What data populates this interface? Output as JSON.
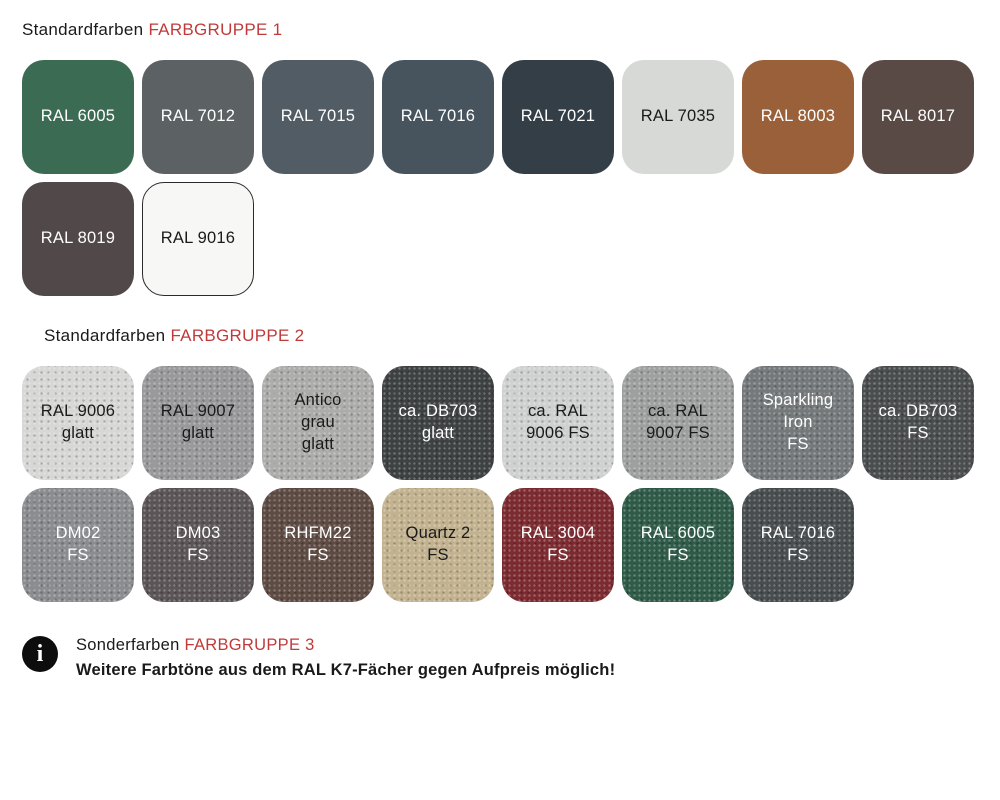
{
  "theme": {
    "accent": "#C13A3A",
    "background": "#FFFFFF",
    "text": "#1A1A1A"
  },
  "groups": [
    {
      "title_plain": "Standardfarben",
      "title_accent": "FARBGRUPPE 1",
      "swatches": [
        {
          "label": "RAL 6005",
          "color": "#3C6B54",
          "text_color": "#FFFFFF"
        },
        {
          "label": "RAL 7012",
          "color": "#5C6164",
          "text_color": "#FFFFFF"
        },
        {
          "label": "RAL 7015",
          "color": "#525C64",
          "text_color": "#FFFFFF"
        },
        {
          "label": "RAL 7016",
          "color": "#47545E",
          "text_color": "#FFFFFF"
        },
        {
          "label": "RAL 7021",
          "color": "#333E46",
          "text_color": "#FFFFFF"
        },
        {
          "label": "RAL 7035",
          "color": "#D6D9D6",
          "text_color": "#1A1A1A"
        },
        {
          "label": "RAL 8003",
          "color": "#9A603A",
          "text_color": "#FFFFFF"
        },
        {
          "label": "RAL 8017",
          "color": "#594A46",
          "text_color": "#FFFFFF"
        },
        {
          "label": "RAL 8019",
          "color": "#514849",
          "text_color": "#FFFFFF"
        },
        {
          "label": "RAL 9016",
          "color": "#F7F7F5",
          "text_color": "#1A1A1A"
        }
      ]
    },
    {
      "title_plain": "Standardfarben",
      "title_accent": "FARBGRUPPE 2",
      "swatches": [
        {
          "label": "RAL 9006\nglatt",
          "color": "#D7D7D5",
          "text_color": "#1A1A1A"
        },
        {
          "label": "RAL 9007\nglatt",
          "color": "#99999B",
          "text_color": "#1A1A1A"
        },
        {
          "label": "Antico\ngrau\nglatt",
          "color": "#ACACAA",
          "text_color": "#1A1A1A"
        },
        {
          "label": "ca. DB703\nglatt",
          "color": "#3F4243",
          "text_color": "#FFFFFF"
        },
        {
          "label": "ca. RAL\n9006 FS",
          "color": "#CFD1D0",
          "text_color": "#1A1A1A"
        },
        {
          "label": "ca. RAL\n9007 FS",
          "color": "#9EA0A0",
          "text_color": "#1A1A1A"
        },
        {
          "label": "Sparkling\nIron\nFS",
          "color": "#75797B",
          "text_color": "#FFFFFF"
        },
        {
          "label": "ca. DB703\nFS",
          "color": "#4B4E4F",
          "text_color": "#FFFFFF"
        },
        {
          "label": "DM02\nFS",
          "color": "#8A8C90",
          "text_color": "#FFFFFF"
        },
        {
          "label": "DM03\nFS",
          "color": "#5B5557",
          "text_color": "#FFFFFF"
        },
        {
          "label": "RHFM22\nFS",
          "color": "#5E4B43",
          "text_color": "#FFFFFF"
        },
        {
          "label": "Quartz 2\nFS",
          "color": "#C2B28F",
          "text_color": "#1A1A1A"
        },
        {
          "label": "RAL 3004\nFS",
          "color": "#7C2B31",
          "text_color": "#FFFFFF"
        },
        {
          "label": "RAL 6005\nFS",
          "color": "#2F5B48",
          "text_color": "#FFFFFF"
        },
        {
          "label": "RAL 7016\nFS",
          "color": "#484D4F",
          "text_color": "#FFFFFF"
        }
      ]
    }
  ],
  "footer": {
    "icon_glyph": "i",
    "note_plain": "Sonderfarben",
    "note_accent": "FARBGRUPPE 3",
    "note_detail": "Weitere Farbtöne aus dem RAL K7-Fächer gegen Aufpreis möglich!"
  }
}
